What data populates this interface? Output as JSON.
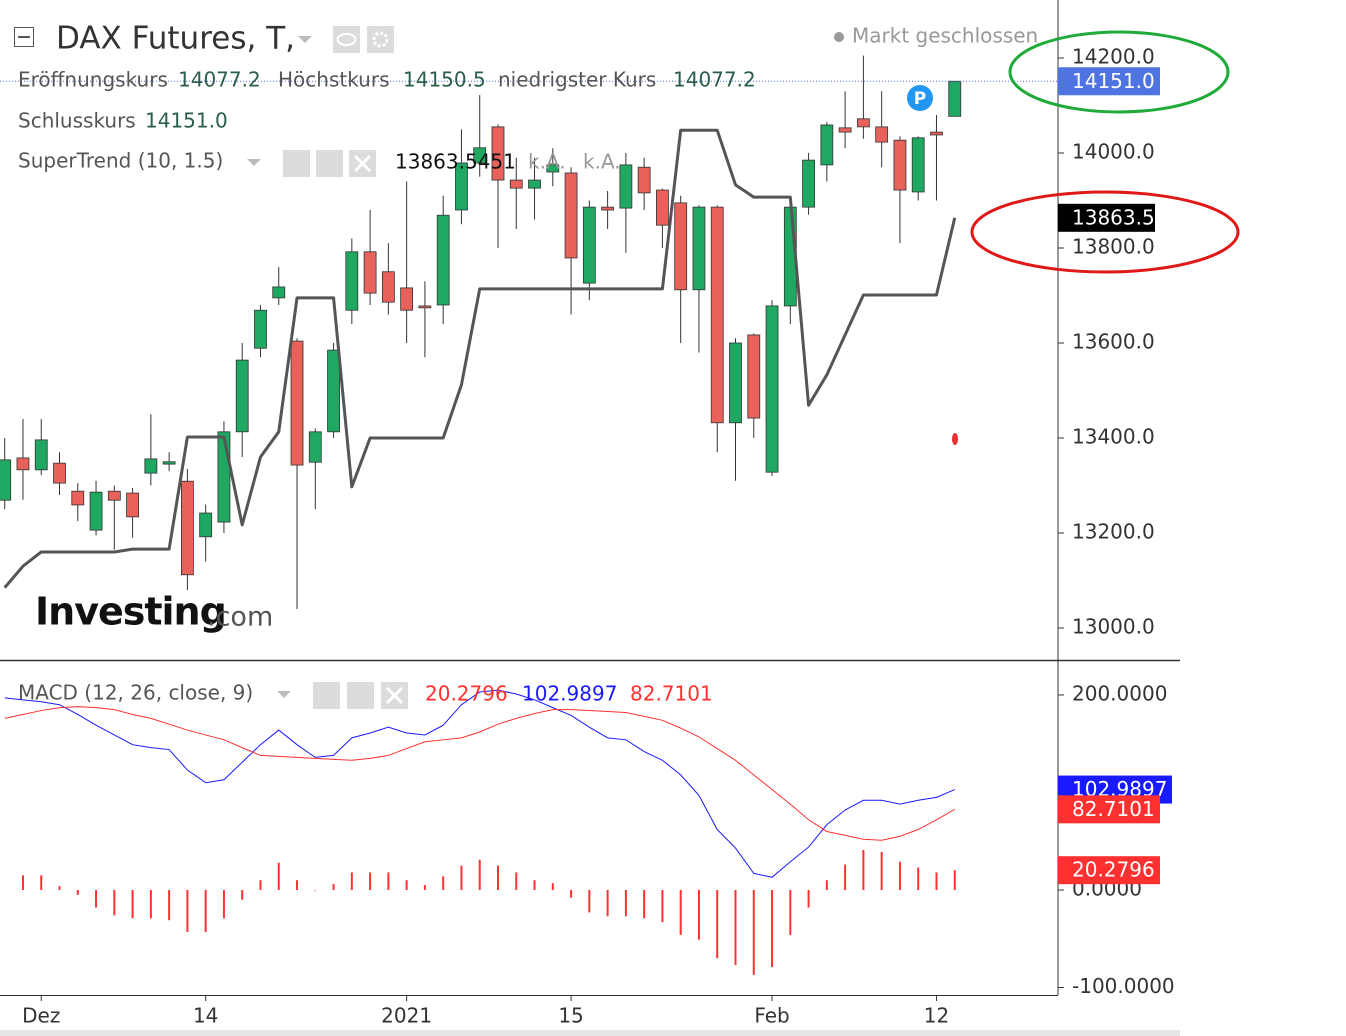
{
  "chart_data": [
    {
      "type": "candlestick",
      "title": "DAX Futures, T,",
      "status": "Markt geschlossen",
      "ohlc_labels": [
        "Eröffnungskurs",
        "Höchstkurs",
        "niedrigster Kurs",
        "Schlusskurs"
      ],
      "ohlc_value_labels": [
        "14077.2",
        "14150.5",
        "14077.2",
        "14151.0"
      ],
      "last_price_label": "14151.0",
      "watermark": [
        "Investing",
        ".com"
      ],
      "categories": [
        null,
        null,
        "Dez",
        null,
        null,
        null,
        null,
        null,
        null,
        null,
        null,
        "14",
        null,
        null,
        null,
        null,
        null,
        null,
        null,
        null,
        null,
        null,
        "2021",
        null,
        null,
        null,
        null,
        null,
        null,
        null,
        null,
        "15",
        null,
        null,
        null,
        null,
        null,
        null,
        null,
        null,
        null,
        null,
        "Feb",
        null,
        null,
        null,
        null,
        null,
        null,
        null,
        null,
        "12",
        null
      ],
      "open": [
        13269,
        13358,
        13333,
        13347,
        13288,
        13206,
        13288,
        13284,
        13326,
        13345,
        13309,
        13192,
        13223,
        13413,
        13589,
        13695,
        13604,
        13349,
        13413,
        13669,
        13792,
        13750,
        13716,
        13678,
        13680,
        13880,
        13979,
        14055,
        13943,
        13926,
        13960,
        13958,
        13726,
        13886,
        13884,
        13970,
        13922,
        13895,
        13712,
        13886,
        13432,
        13617,
        13328,
        13678,
        13886,
        13975,
        14053,
        14072,
        14055,
        14027,
        13918,
        14044,
        14077.2
      ],
      "high": [
        13400,
        13440,
        13440,
        13370,
        13305,
        13310,
        13300,
        13295,
        13450,
        13370,
        13335,
        13260,
        13435,
        13600,
        13680,
        13760,
        13610,
        13420,
        13600,
        13820,
        13880,
        13810,
        13940,
        13730,
        13910,
        14050,
        14122,
        14060,
        13990,
        13990,
        14010,
        13970,
        13900,
        13920,
        14000,
        13990,
        13925,
        13910,
        13890,
        13890,
        13610,
        13620,
        13690,
        13900,
        14000,
        14065,
        14130,
        14205,
        14130,
        14035,
        14035,
        14080,
        14150.5
      ],
      "low": [
        13250,
        13270,
        13322,
        13280,
        13225,
        13195,
        13165,
        13190,
        13300,
        13330,
        13080,
        13140,
        13200,
        13360,
        13570,
        13680,
        13040,
        13250,
        13400,
        13640,
        13680,
        13660,
        13600,
        13570,
        13640,
        13850,
        13950,
        13800,
        13840,
        13860,
        13930,
        13660,
        13690,
        13840,
        13790,
        13880,
        13800,
        13600,
        13580,
        13370,
        13310,
        13400,
        13320,
        13640,
        13870,
        13940,
        14010,
        14030,
        13970,
        13810,
        13900,
        13900,
        14077.2
      ],
      "close": [
        13354,
        13333,
        13396,
        13305,
        13259,
        13286,
        13269,
        13234,
        13356,
        13350,
        13112,
        13242,
        13413,
        13564,
        13669,
        13718,
        13343,
        13413,
        13585,
        13792,
        13705,
        13686,
        13669,
        13674,
        13869,
        13979,
        14011,
        13943,
        13926,
        13943,
        13975,
        13779,
        13886,
        13880,
        13975,
        13916,
        13848,
        13712,
        13886,
        13432,
        13600,
        13442,
        13678,
        13886,
        13985,
        14059,
        14044,
        14055,
        14023,
        13922,
        14032,
        14038,
        14151.0
      ],
      "up_color": "#1fa862",
      "down_color": "#e8615a",
      "ylim": [
        12932.6,
        14322.1
      ],
      "yticks": [
        {
          "value": 13000,
          "label": "13000.0"
        },
        {
          "value": 13200,
          "label": "13200.0"
        },
        {
          "value": 13400,
          "label": "13400.0"
        },
        {
          "value": 13600,
          "label": "13600.0"
        },
        {
          "value": 13800,
          "label": "13800.0"
        },
        {
          "value": 14000,
          "label": "14000.0"
        },
        {
          "value": 14200,
          "label": "14200.0"
        }
      ],
      "overlay": {
        "name": "SuperTrend (10, 1.5)",
        "color": "#555555",
        "values": [
          13085,
          13130,
          13160,
          13160,
          13160,
          13160,
          13160,
          13166,
          13166,
          13166,
          13402,
          13402,
          13402,
          13217,
          13360,
          13413,
          13695,
          13695,
          13695,
          13297,
          13400,
          13400,
          13400,
          13400,
          13400,
          13512,
          13714,
          13714,
          13714,
          13714,
          13714,
          13714,
          13714,
          13714,
          13714,
          13714,
          13714,
          14048,
          14048,
          14048,
          13933,
          13907,
          13907,
          13907,
          13469,
          13533,
          13617,
          13701,
          13701,
          13701,
          13701,
          13701,
          13863.5451
        ],
        "value_label": "13863.5451",
        "axis_value_label": "13863.5",
        "status_labels": [
          "k.A.",
          "k.A."
        ]
      }
    },
    {
      "type": "macd",
      "title": "MACD (12, 26, close, 9)",
      "ylim": [
        -107.7,
        233.8
      ],
      "yticks": [
        {
          "value": 200,
          "label": "200.0000"
        },
        {
          "value": 0,
          "label": "0.0000"
        },
        {
          "value": -100,
          "label": "-100.0000"
        }
      ],
      "series": [
        {
          "type": "histogram",
          "color": "#ff3030",
          "value_label": "20.2796",
          "values": [
            null,
            15,
            15,
            4,
            -5,
            -18,
            -26,
            -29,
            -29,
            -31,
            -43,
            -43,
            -29,
            -10,
            10,
            28,
            10,
            0,
            6,
            18,
            18,
            18,
            10,
            5,
            14,
            25,
            31,
            25,
            18,
            10,
            7,
            -8,
            -23,
            -27,
            -27,
            -29,
            -33,
            -46,
            -51,
            -70,
            -77,
            -87,
            -79,
            -46,
            -18,
            10,
            26,
            41,
            39,
            29,
            23,
            18,
            20.2796
          ]
        },
        {
          "type": "line",
          "color": "#1a1aff",
          "value_label": "102.9897",
          "values": [
            197,
            195,
            193,
            190,
            180,
            169,
            159,
            149,
            146,
            144,
            123,
            110,
            113,
            131,
            149,
            164,
            149,
            136,
            138,
            156,
            161,
            167,
            161,
            159,
            169,
            190,
            203,
            205,
            201,
            195,
            187,
            179,
            167,
            156,
            154,
            142,
            133,
            118,
            97,
            62,
            43,
            17,
            13,
            29,
            44,
            67,
            82,
            92,
            92,
            88,
            92,
            95,
            102.9897
          ]
        },
        {
          "type": "line",
          "color": "#ff3030",
          "value_label": "82.7101",
          "values": [
            176,
            180,
            184,
            187,
            188,
            187,
            185,
            180,
            176,
            170,
            164,
            159,
            154,
            146,
            138,
            137,
            136,
            135,
            134,
            133,
            135,
            138,
            145,
            152,
            154,
            156,
            162,
            170,
            176,
            181,
            185,
            185,
            184,
            183,
            182,
            178,
            174,
            166,
            157,
            145,
            133,
            118,
            103,
            88,
            72,
            60,
            56,
            52,
            51,
            55,
            62,
            72,
            82.7101
          ]
        }
      ]
    }
  ]
}
